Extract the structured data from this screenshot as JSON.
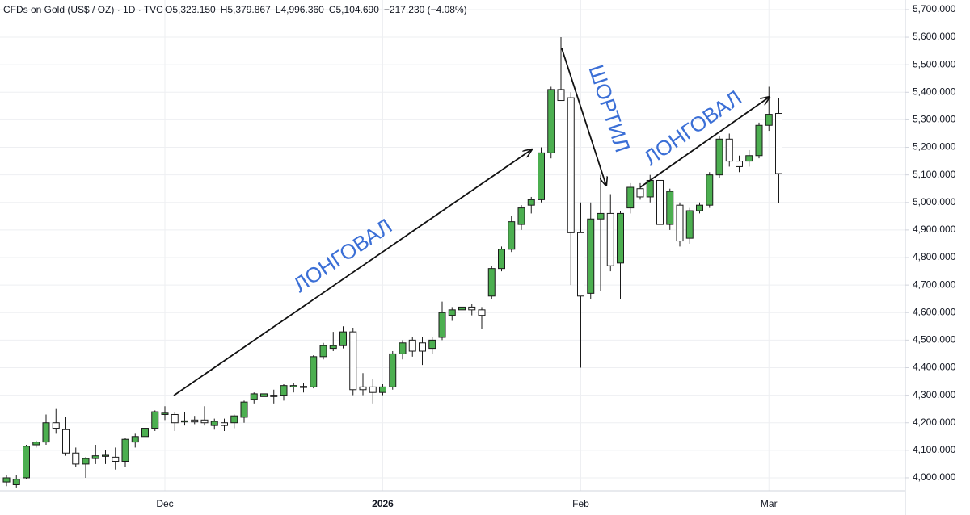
{
  "chart_data": {
    "type": "candlestick",
    "symbol": "CFDs on Gold (US$ / OZ) · 1D · TVC",
    "ohlc_labels": [
      "O5,323.150",
      "H5,379.867",
      "L4,996.360",
      "C5,104.690",
      "−217.230 (−4.08%)"
    ],
    "annotations": [
      "ЛОНГОВАЛ",
      "ШОРТИЛ",
      "ЛОНГОВАЛ"
    ],
    "categories": [
      null,
      null,
      null,
      null,
      null,
      null,
      null,
      null,
      null,
      null,
      null,
      null,
      null,
      null,
      null,
      null,
      "Dec",
      null,
      null,
      null,
      null,
      null,
      null,
      null,
      null,
      null,
      null,
      null,
      null,
      null,
      null,
      null,
      null,
      null,
      null,
      null,
      null,
      null,
      "2026",
      null,
      null,
      null,
      null,
      null,
      null,
      null,
      null,
      null,
      null,
      null,
      null,
      null,
      null,
      null,
      null,
      null,
      null,
      null,
      "Feb",
      null,
      null,
      null,
      null,
      null,
      null,
      null,
      null,
      null,
      null,
      null,
      null,
      null,
      null,
      null,
      null,
      null,
      null,
      "Mar",
      null
    ],
    "open": [
      3985,
      3975,
      4000,
      4120,
      4130,
      4200,
      4175,
      4090,
      4050,
      4070,
      4078,
      4075,
      4060,
      4130,
      4150,
      4180,
      4230,
      4230,
      4203,
      4210,
      4210,
      4190,
      4200,
      4200,
      4220,
      4285,
      4295,
      4300,
      4300,
      4330,
      4332,
      4330,
      4440,
      4470,
      4480,
      4530,
      4330,
      4330,
      4310,
      4330,
      4450,
      4500,
      4490,
      4470,
      4510,
      4590,
      4610,
      4620,
      4610,
      4660,
      4760,
      4830,
      4920,
      4990,
      5010,
      5180,
      5410,
      5380,
      4890,
      4670,
      4940,
      4960,
      4780,
      4980,
      5050,
      5020,
      5080,
      4920,
      4990,
      4870,
      4970,
      4990,
      5100,
      5230,
      5150,
      5150,
      5170,
      5280,
      5323.15
    ],
    "high": [
      4010,
      4010,
      4120,
      4135,
      4230,
      4250,
      4220,
      4110,
      4075,
      4120,
      4100,
      4110,
      4145,
      4160,
      4190,
      4245,
      4260,
      4240,
      4240,
      4225,
      4260,
      4215,
      4215,
      4230,
      4280,
      4310,
      4350,
      4320,
      4340,
      4345,
      4345,
      4445,
      4490,
      4530,
      4550,
      4545,
      4380,
      4360,
      4340,
      4460,
      4500,
      4510,
      4510,
      4510,
      4640,
      4620,
      4640,
      4630,
      4620,
      4770,
      4840,
      4950,
      4990,
      5020,
      5200,
      5420,
      5600,
      5400,
      5000,
      5000,
      5100,
      5030,
      4970,
      5070,
      5070,
      5100,
      5090,
      5050,
      5000,
      4980,
      5000,
      5110,
      5240,
      5250,
      5170,
      5190,
      5290,
      5420,
      5379.867
    ],
    "low": [
      3970,
      3965,
      3995,
      4110,
      4120,
      4160,
      4080,
      4040,
      4000,
      4050,
      4050,
      4030,
      4040,
      4110,
      4130,
      4170,
      4210,
      4170,
      4190,
      4195,
      4190,
      4175,
      4170,
      4180,
      4200,
      4270,
      4280,
      4270,
      4280,
      4310,
      4310,
      4325,
      4430,
      4460,
      4470,
      4300,
      4300,
      4270,
      4300,
      4320,
      4430,
      4440,
      4410,
      4450,
      4500,
      4570,
      4590,
      4590,
      4540,
      4650,
      4750,
      4820,
      4900,
      4960,
      5000,
      5160,
      5370,
      4700,
      4400,
      4650,
      4680,
      4750,
      4650,
      4960,
      5010,
      5000,
      4880,
      4900,
      4840,
      4850,
      4960,
      4980,
      5090,
      5130,
      5110,
      5130,
      5160,
      5260,
      4996.36
    ],
    "close": [
      4000,
      3995,
      4115,
      4130,
      4200,
      4180,
      4090,
      4050,
      4070,
      4080,
      4082,
      4060,
      4140,
      4150,
      4180,
      4240,
      4235,
      4200,
      4207,
      4203,
      4200,
      4205,
      4190,
      4225,
      4275,
      4305,
      4305,
      4295,
      4335,
      4335,
      4328,
      4440,
      4480,
      4480,
      4530,
      4320,
      4320,
      4310,
      4330,
      4450,
      4490,
      4460,
      4460,
      4500,
      4600,
      4610,
      4620,
      4610,
      4590,
      4760,
      4830,
      4930,
      4980,
      5010,
      5180,
      5410,
      5370,
      4890,
      4660,
      4940,
      4960,
      4770,
      4960,
      5055,
      5020,
      5080,
      4920,
      5040,
      4860,
      4970,
      4990,
      5100,
      5230,
      5150,
      5130,
      5170,
      5280,
      5320,
      5104.69
    ],
    "colors": {
      "up": "#4caf50",
      "down": "#ffffff",
      "border": "#1a1a1a",
      "annotation": "#3b6fd6"
    },
    "grid": true,
    "ylim": [
      3953,
      5735
    ],
    "yticks": [
      {
        "value": 4000,
        "label": "4,000.000"
      },
      {
        "value": 4100,
        "label": "4,100.000"
      },
      {
        "value": 4200,
        "label": "4,200.000"
      },
      {
        "value": 4300,
        "label": "4,300.000"
      },
      {
        "value": 4400,
        "label": "4,400.000"
      },
      {
        "value": 4500,
        "label": "4,500.000"
      },
      {
        "value": 4600,
        "label": "4,600.000"
      },
      {
        "value": 4700,
        "label": "4,700.000"
      },
      {
        "value": 4800,
        "label": "4,800.000"
      },
      {
        "value": 4900,
        "label": "4,900.000"
      },
      {
        "value": 5000,
        "label": "5,000.000"
      },
      {
        "value": 5100,
        "label": "5,100.000"
      },
      {
        "value": 5200,
        "label": "5,200.000"
      },
      {
        "value": 5300,
        "label": "5,300.000"
      },
      {
        "value": 5400,
        "label": "5,400.000"
      },
      {
        "value": 5500,
        "label": "5,500.000"
      },
      {
        "value": 5600,
        "label": "5,600.000"
      },
      {
        "value": 5700,
        "label": "5,700.000"
      }
    ]
  }
}
